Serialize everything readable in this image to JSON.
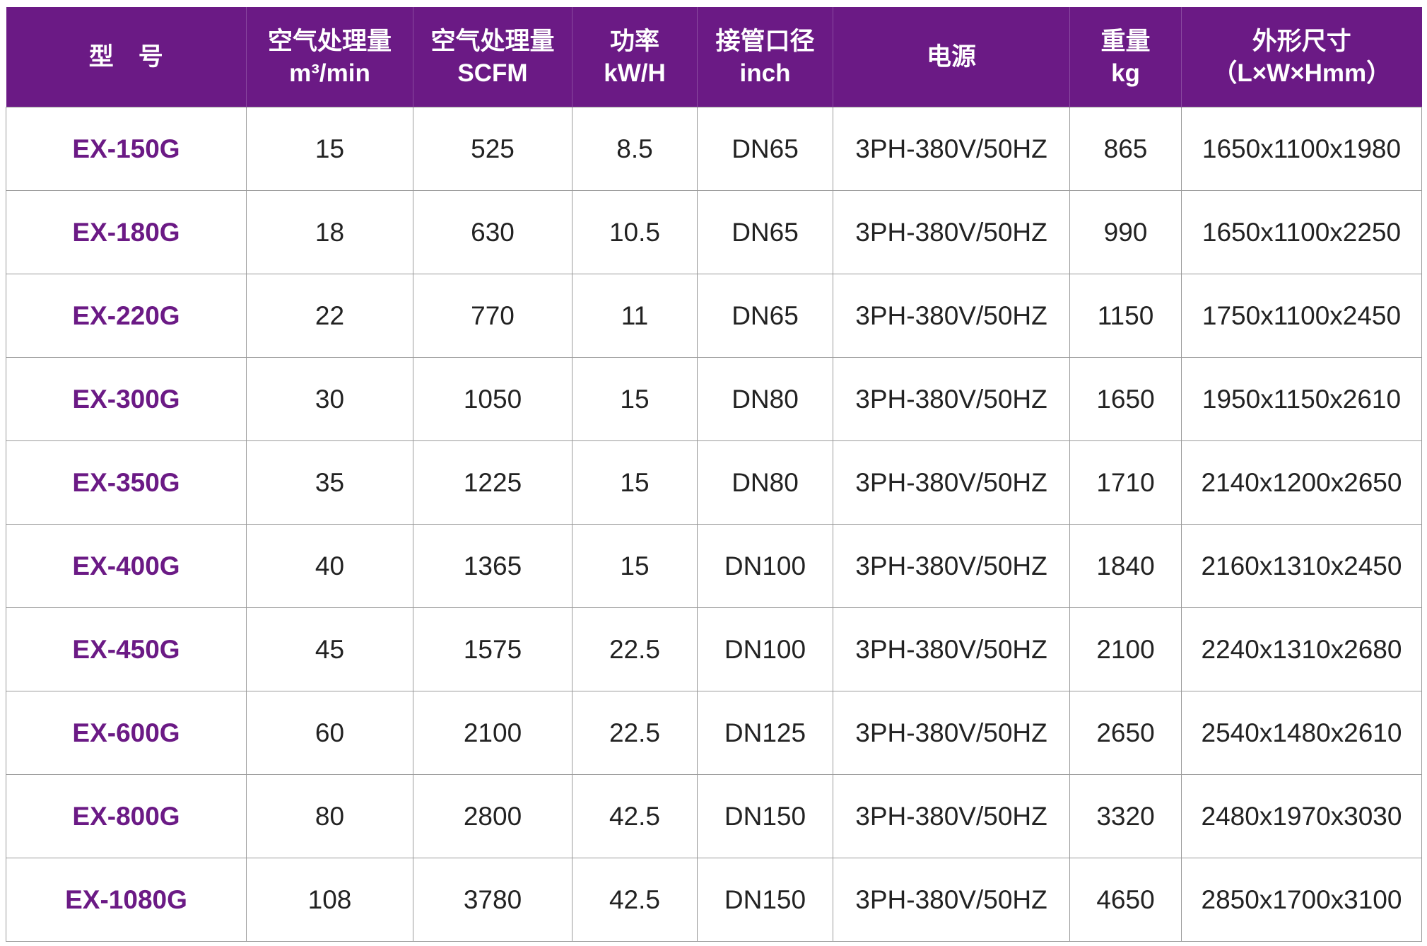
{
  "colors": {
    "accent": "#6b1a85",
    "header_text": "#ffffff"
  },
  "headers": [
    {
      "line1": "型　号",
      "line2": ""
    },
    {
      "line1": "空气处理量",
      "line2": "m³/min"
    },
    {
      "line1": "空气处理量",
      "line2": "SCFM"
    },
    {
      "line1": "功率",
      "line2": "kW/H"
    },
    {
      "line1": "接管口径",
      "line2": "inch"
    },
    {
      "line1": "电源",
      "line2": ""
    },
    {
      "line1": "重量",
      "line2": "kg"
    },
    {
      "line1": "外形尺寸",
      "line2": "（L×W×Hmm）"
    }
  ],
  "rows": [
    [
      "EX-150G",
      "15",
      "525",
      "8.5",
      "DN65",
      "3PH-380V/50HZ",
      "865",
      "1650x1100x1980"
    ],
    [
      "EX-180G",
      "18",
      "630",
      "10.5",
      "DN65",
      "3PH-380V/50HZ",
      "990",
      "1650x1100x2250"
    ],
    [
      "EX-220G",
      "22",
      "770",
      "11",
      "DN65",
      "3PH-380V/50HZ",
      "1150",
      "1750x1100x2450"
    ],
    [
      "EX-300G",
      "30",
      "1050",
      "15",
      "DN80",
      "3PH-380V/50HZ",
      "1650",
      "1950x1150x2610"
    ],
    [
      "EX-350G",
      "35",
      "1225",
      "15",
      "DN80",
      "3PH-380V/50HZ",
      "1710",
      "2140x1200x2650"
    ],
    [
      "EX-400G",
      "40",
      "1365",
      "15",
      "DN100",
      "3PH-380V/50HZ",
      "1840",
      "2160x1310x2450"
    ],
    [
      "EX-450G",
      "45",
      "1575",
      "22.5",
      "DN100",
      "3PH-380V/50HZ",
      "2100",
      "2240x1310x2680"
    ],
    [
      "EX-600G",
      "60",
      "2100",
      "22.5",
      "DN125",
      "3PH-380V/50HZ",
      "2650",
      "2540x1480x2610"
    ],
    [
      "EX-800G",
      "80",
      "2800",
      "42.5",
      "DN150",
      "3PH-380V/50HZ",
      "3320",
      "2480x1970x3030"
    ],
    [
      "EX-1080G",
      "108",
      "3780",
      "42.5",
      "DN150",
      "3PH-380V/50HZ",
      "4650",
      "2850x1700x3100"
    ]
  ]
}
